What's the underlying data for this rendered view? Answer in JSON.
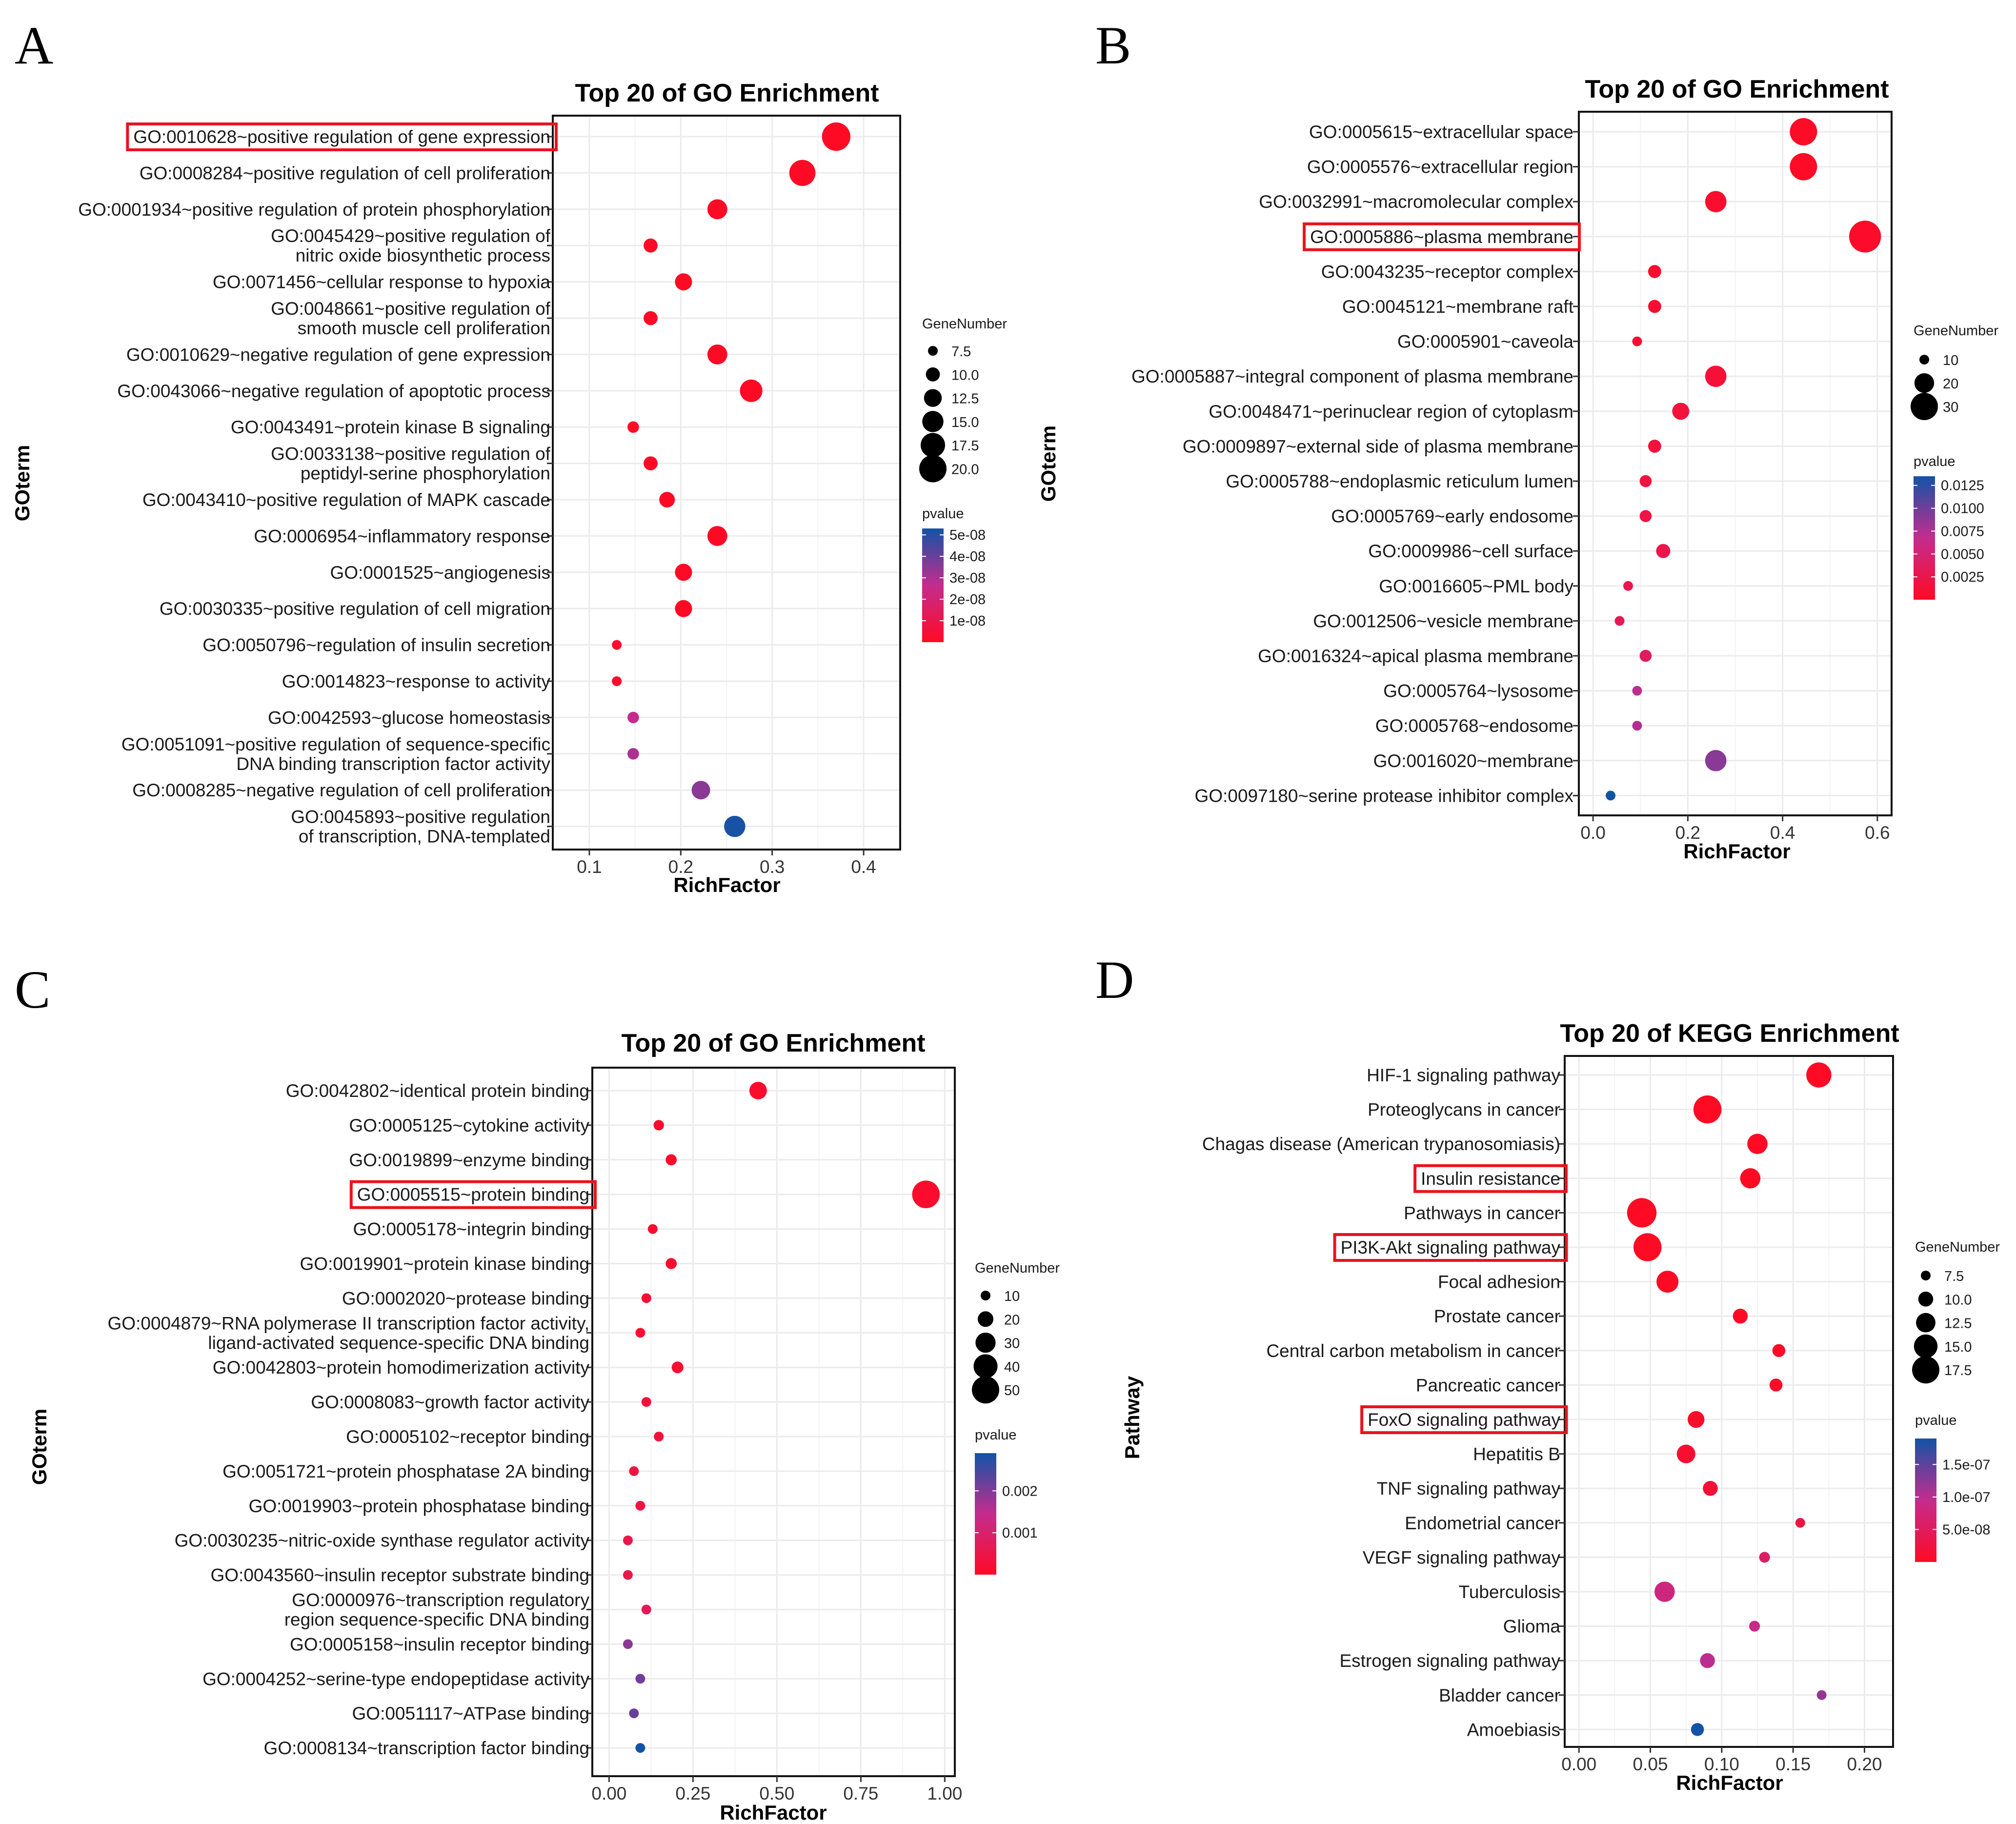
{
  "colors": {
    "low_p": "#ff0a25",
    "mid_p": "#c42c8e",
    "high_p": "#1253a6",
    "grid": "#ebebeb",
    "highlight_box": "#e8141d"
  },
  "chart_data": [
    {
      "panel": "A",
      "type": "scatter",
      "title": "Top 20 of GO Enrichment",
      "xlabel": "RichFactor",
      "ylabel": "GOterm",
      "xlim": [
        0.06,
        0.44
      ],
      "xticks": [
        0.1,
        0.2,
        0.3,
        0.4
      ],
      "xtick_labels": [
        "0.1",
        "0.2",
        "0.3",
        "0.4"
      ],
      "size_legend": {
        "title": "GeneNumber",
        "values": [
          7.5,
          10.0,
          12.5,
          15.0,
          17.5,
          20.0
        ],
        "labels": [
          "7.5",
          "10.0",
          "12.5",
          "15.0",
          "17.5",
          "20.0"
        ]
      },
      "color_legend": {
        "title": "pvalue",
        "min": 0,
        "max": 5.3e-08,
        "ticks": [
          5e-08,
          4e-08,
          3e-08,
          2e-08,
          1e-08
        ],
        "labels": [
          "5e-08",
          "4e-08",
          "3e-08",
          "2e-08",
          "1e-08"
        ]
      },
      "terms": [
        {
          "label": [
            "GO:0010628~positive regulation of gene expression"
          ],
          "x": 0.37,
          "count": 21,
          "p": 1e-10,
          "highlight": true
        },
        {
          "label": [
            "GO:0008284~positive regulation of cell proliferation"
          ],
          "x": 0.333,
          "count": 19,
          "p": 1e-10
        },
        {
          "label": [
            "GO:0001934~positive regulation of protein phosphorylation"
          ],
          "x": 0.24,
          "count": 14,
          "p": 1e-10
        },
        {
          "label": [
            "GO:0045429~positive regulation of",
            "nitric oxide biosynthetic process"
          ],
          "x": 0.167,
          "count": 10,
          "p": 1e-10
        },
        {
          "label": [
            "GO:0071456~cellular response to hypoxia"
          ],
          "x": 0.203,
          "count": 12,
          "p": 1e-10
        },
        {
          "label": [
            "GO:0048661~positive regulation of",
            "smooth muscle cell proliferation"
          ],
          "x": 0.167,
          "count": 10,
          "p": 1e-10
        },
        {
          "label": [
            "GO:0010629~negative regulation of gene expression"
          ],
          "x": 0.24,
          "count": 14,
          "p": 1e-10
        },
        {
          "label": [
            "GO:0043066~negative regulation of apoptotic process"
          ],
          "x": 0.277,
          "count": 16,
          "p": 1e-10
        },
        {
          "label": [
            "GO:0043491~protein kinase B signaling"
          ],
          "x": 0.148,
          "count": 8.5,
          "p": 1e-10
        },
        {
          "label": [
            "GO:0033138~positive regulation of",
            "peptidyl-serine phosphorylation"
          ],
          "x": 0.167,
          "count": 10,
          "p": 1e-10
        },
        {
          "label": [
            "GO:0043410~positive regulation of MAPK cascade"
          ],
          "x": 0.185,
          "count": 11,
          "p": 1e-10
        },
        {
          "label": [
            "GO:0006954~inflammatory response"
          ],
          "x": 0.24,
          "count": 14,
          "p": 1e-10
        },
        {
          "label": [
            "GO:0001525~angiogenesis"
          ],
          "x": 0.203,
          "count": 12,
          "p": 1e-10
        },
        {
          "label": [
            "GO:0030335~positive regulation of cell migration"
          ],
          "x": 0.203,
          "count": 12,
          "p": 1e-10
        },
        {
          "label": [
            "GO:0050796~regulation of insulin secretion"
          ],
          "x": 0.13,
          "count": 6,
          "p": 2e-09
        },
        {
          "label": [
            "GO:0014823~response to activity"
          ],
          "x": 0.13,
          "count": 6,
          "p": 2e-09
        },
        {
          "label": [
            "GO:0042593~glucose homeostasis"
          ],
          "x": 0.148,
          "count": 8.5,
          "p": 2.6e-08
        },
        {
          "label": [
            "GO:0051091~positive regulation of sequence-specific",
            "DNA binding transcription factor activity"
          ],
          "x": 0.148,
          "count": 8.5,
          "p": 3e-08
        },
        {
          "label": [
            "GO:0008285~negative regulation of cell proliferation"
          ],
          "x": 0.222,
          "count": 13,
          "p": 3.5e-08
        },
        {
          "label": [
            "GO:0045893~positive regulation",
            "of transcription, DNA-templated"
          ],
          "x": 0.259,
          "count": 15,
          "p": 5.2e-08
        }
      ]
    },
    {
      "panel": "B",
      "type": "scatter",
      "title": "Top 20 of GO Enrichment",
      "xlabel": "RichFactor",
      "ylabel": "GOterm",
      "xlim": [
        -0.03,
        0.63
      ],
      "xticks": [
        0.0,
        0.2,
        0.4,
        0.6
      ],
      "xtick_labels": [
        "0.0",
        "0.2",
        "0.4",
        "0.6"
      ],
      "size_legend": {
        "title": "GeneNumber",
        "values": [
          10,
          20,
          30
        ],
        "labels": [
          "10",
          "20",
          "30"
        ]
      },
      "color_legend": {
        "title": "pvalue",
        "min": 0,
        "max": 0.0135,
        "ticks": [
          0.0125,
          0.01,
          0.0075,
          0.005,
          0.0025
        ],
        "labels": [
          "0.0125",
          "0.0100",
          "0.0075",
          "0.0050",
          "0.0025"
        ]
      },
      "terms": [
        {
          "label": [
            "GO:0005615~extracellular space"
          ],
          "x": 0.444,
          "count": 30,
          "p": 0.0001
        },
        {
          "label": [
            "GO:0005576~extracellular region"
          ],
          "x": 0.444,
          "count": 30,
          "p": 0.0001
        },
        {
          "label": [
            "GO:0032991~macromolecular complex"
          ],
          "x": 0.259,
          "count": 22,
          "p": 0.0005
        },
        {
          "label": [
            "GO:0005886~plasma membrane"
          ],
          "x": 0.574,
          "count": 37,
          "p": 0.0003,
          "highlight": true
        },
        {
          "label": [
            "GO:0043235~receptor complex"
          ],
          "x": 0.13,
          "count": 13,
          "p": 0.0008
        },
        {
          "label": [
            "GO:0045121~membrane raft"
          ],
          "x": 0.13,
          "count": 13,
          "p": 0.0008
        },
        {
          "label": [
            "GO:0005901~caveola"
          ],
          "x": 0.093,
          "count": 10,
          "p": 0.0008
        },
        {
          "label": [
            "GO:0005887~integral component of plasma membrane"
          ],
          "x": 0.259,
          "count": 22,
          "p": 0.0012
        },
        {
          "label": [
            "GO:0048471~perinuclear region of cytoplasm"
          ],
          "x": 0.185,
          "count": 17,
          "p": 0.0015
        },
        {
          "label": [
            "GO:0009897~external side of plasma membrane"
          ],
          "x": 0.13,
          "count": 13,
          "p": 0.0015
        },
        {
          "label": [
            "GO:0005788~endoplasmic reticulum lumen"
          ],
          "x": 0.111,
          "count": 12,
          "p": 0.0018
        },
        {
          "label": [
            "GO:0005769~early endosome"
          ],
          "x": 0.111,
          "count": 12,
          "p": 0.002
        },
        {
          "label": [
            "GO:0009986~cell surface"
          ],
          "x": 0.148,
          "count": 14,
          "p": 0.0025
        },
        {
          "label": [
            "GO:0016605~PML body"
          ],
          "x": 0.074,
          "count": 9,
          "p": 0.0025
        },
        {
          "label": [
            "GO:0012506~vesicle membrane"
          ],
          "x": 0.056,
          "count": 7,
          "p": 0.003
        },
        {
          "label": [
            "GO:0016324~apical plasma membrane"
          ],
          "x": 0.111,
          "count": 12,
          "p": 0.0035
        },
        {
          "label": [
            "GO:0005764~lysosome"
          ],
          "x": 0.093,
          "count": 10,
          "p": 0.007
        },
        {
          "label": [
            "GO:0005768~endosome"
          ],
          "x": 0.093,
          "count": 10,
          "p": 0.0075
        },
        {
          "label": [
            "GO:0016020~membrane"
          ],
          "x": 0.259,
          "count": 22,
          "p": 0.009
        },
        {
          "label": [
            "GO:0097180~serine protease inhibitor complex"
          ],
          "x": 0.037,
          "count": 4,
          "p": 0.0135
        }
      ]
    },
    {
      "panel": "C",
      "type": "scatter",
      "title": "Top 20 of GO Enrichment",
      "xlabel": "RichFactor",
      "ylabel": "GOterm",
      "xlim": [
        -0.05,
        1.03
      ],
      "xticks": [
        0.0,
        0.25,
        0.5,
        0.75,
        1.0
      ],
      "xtick_labels": [
        "0.00",
        "0.25",
        "0.50",
        "0.75",
        "1.00"
      ],
      "size_legend": {
        "title": "GeneNumber",
        "values": [
          10,
          20,
          30,
          40,
          50
        ],
        "labels": [
          "10",
          "20",
          "30",
          "40",
          "50"
        ]
      },
      "color_legend": {
        "title": "pvalue",
        "min": 0,
        "max": 0.0029,
        "ticks": [
          0.002,
          0.001
        ],
        "labels": [
          "0.002",
          "0.001"
        ]
      },
      "terms": [
        {
          "label": [
            "GO:0042802~identical protein binding"
          ],
          "x": 0.444,
          "count": 24,
          "p": 0.0001
        },
        {
          "label": [
            "GO:0005125~cytokine activity"
          ],
          "x": 0.148,
          "count": 11,
          "p": 0.0001
        },
        {
          "label": [
            "GO:0019899~enzyme binding"
          ],
          "x": 0.185,
          "count": 12,
          "p": 0.0001
        },
        {
          "label": [
            "GO:0005515~protein binding"
          ],
          "x": 0.944,
          "count": 51,
          "p": 0.0001,
          "highlight": true
        },
        {
          "label": [
            "GO:0005178~integrin binding"
          ],
          "x": 0.13,
          "count": 9,
          "p": 0.0001
        },
        {
          "label": [
            "GO:0019901~protein kinase binding"
          ],
          "x": 0.185,
          "count": 12,
          "p": 0.0001
        },
        {
          "label": [
            "GO:0002020~protease binding"
          ],
          "x": 0.111,
          "count": 8,
          "p": 0.0002
        },
        {
          "label": [
            "GO:0004879~RNA polymerase II transcription factor activity,",
            "ligand-activated sequence-specific DNA binding"
          ],
          "x": 0.093,
          "count": 7,
          "p": 0.0002
        },
        {
          "label": [
            "GO:0042803~protein homodimerization activity"
          ],
          "x": 0.204,
          "count": 13,
          "p": 0.0002
        },
        {
          "label": [
            "GO:0008083~growth factor activity"
          ],
          "x": 0.111,
          "count": 8,
          "p": 0.0003
        },
        {
          "label": [
            "GO:0005102~receptor binding"
          ],
          "x": 0.148,
          "count": 10,
          "p": 0.0003
        },
        {
          "label": [
            "GO:0051721~protein phosphatase 2A binding"
          ],
          "x": 0.074,
          "count": 6,
          "p": 0.0004
        },
        {
          "label": [
            "GO:0019903~protein phosphatase binding"
          ],
          "x": 0.093,
          "count": 7,
          "p": 0.0004
        },
        {
          "label": [
            "GO:0030235~nitric-oxide synthase regulator activity"
          ],
          "x": 0.056,
          "count": 4,
          "p": 0.0005
        },
        {
          "label": [
            "GO:0043560~insulin receptor substrate binding"
          ],
          "x": 0.056,
          "count": 4,
          "p": 0.0005
        },
        {
          "label": [
            "GO:0000976~transcription regulatory",
            "region sequence-specific DNA binding"
          ],
          "x": 0.111,
          "count": 7,
          "p": 0.0007
        },
        {
          "label": [
            "GO:0005158~insulin receptor binding"
          ],
          "x": 0.056,
          "count": 4,
          "p": 0.0019
        },
        {
          "label": [
            "GO:0004252~serine-type endopeptidase activity"
          ],
          "x": 0.093,
          "count": 7,
          "p": 0.0021
        },
        {
          "label": [
            "GO:0051117~ATPase binding"
          ],
          "x": 0.074,
          "count": 6,
          "p": 0.0022
        },
        {
          "label": [
            "GO:0008134~transcription factor binding"
          ],
          "x": 0.093,
          "count": 7,
          "p": 0.0029
        }
      ]
    },
    {
      "panel": "D",
      "type": "scatter",
      "title": "Top 20 of KEGG Enrichment",
      "xlabel": "RichFactor",
      "ylabel": "Pathway",
      "xlim": [
        -0.01,
        0.22
      ],
      "xticks": [
        0.0,
        0.05,
        0.1,
        0.15,
        0.2
      ],
      "xtick_labels": [
        "0.00",
        "0.05",
        "0.10",
        "0.15",
        "0.20"
      ],
      "size_legend": {
        "title": "GeneNumber",
        "values": [
          7.5,
          10.0,
          12.5,
          15.0,
          17.5
        ],
        "labels": [
          "7.5",
          "10.0",
          "12.5",
          "15.0",
          "17.5"
        ]
      },
      "color_legend": {
        "title": "pvalue",
        "min": 0,
        "max": 1.9e-07,
        "ticks": [
          1.5e-07,
          1e-07,
          5e-08
        ],
        "labels": [
          "1.5e-07",
          "1.0e-07",
          "5.0e-08"
        ]
      },
      "terms": [
        {
          "label": [
            "HIF-1 signaling pathway"
          ],
          "x": 0.168,
          "count": 16,
          "p": 1e-10
        },
        {
          "label": [
            "Proteoglycans in cancer"
          ],
          "x": 0.09,
          "count": 18,
          "p": 1e-10
        },
        {
          "label": [
            "Chagas disease (American trypanosomiasis)"
          ],
          "x": 0.125,
          "count": 13,
          "p": 1e-10
        },
        {
          "label": [
            "Insulin resistance"
          ],
          "x": 0.12,
          "count": 13,
          "p": 1e-10,
          "highlight": true
        },
        {
          "label": [
            "Pathways in cancer"
          ],
          "x": 0.044,
          "count": 19,
          "p": 1e-10
        },
        {
          "label": [
            "PI3K-Akt signaling pathway"
          ],
          "x": 0.048,
          "count": 18,
          "p": 1e-10,
          "highlight": true
        },
        {
          "label": [
            "Focal adhesion"
          ],
          "x": 0.062,
          "count": 14,
          "p": 1e-10
        },
        {
          "label": [
            "Prostate cancer"
          ],
          "x": 0.113,
          "count": 10,
          "p": 1e-10
        },
        {
          "label": [
            "Central carbon metabolism in cancer"
          ],
          "x": 0.14,
          "count": 9,
          "p": 2e-09
        },
        {
          "label": [
            "Pancreatic cancer"
          ],
          "x": 0.138,
          "count": 9,
          "p": 2e-09
        },
        {
          "label": [
            "FoxO signaling pathway"
          ],
          "x": 0.082,
          "count": 11,
          "p": 5e-09,
          "highlight": true
        },
        {
          "label": [
            "Hepatitis B"
          ],
          "x": 0.075,
          "count": 12,
          "p": 1e-08
        },
        {
          "label": [
            "TNF signaling pathway"
          ],
          "x": 0.092,
          "count": 10,
          "p": 1.5e-08
        },
        {
          "label": [
            "Endometrial cancer"
          ],
          "x": 0.155,
          "count": 7,
          "p": 2.5e-08
        },
        {
          "label": [
            "VEGF signaling pathway"
          ],
          "x": 0.13,
          "count": 8,
          "p": 6e-08
        },
        {
          "label": [
            "Tuberculosis"
          ],
          "x": 0.06,
          "count": 13,
          "p": 8e-08
        },
        {
          "label": [
            "Glioma"
          ],
          "x": 0.123,
          "count": 8,
          "p": 9e-08
        },
        {
          "label": [
            "Estrogen signaling pathway"
          ],
          "x": 0.09,
          "count": 10,
          "p": 1e-07
        },
        {
          "label": [
            "Bladder cancer"
          ],
          "x": 0.17,
          "count": 5,
          "p": 1.2e-07
        },
        {
          "label": [
            "Amoebiasis"
          ],
          "x": 0.083,
          "count": 9,
          "p": 1.9e-07
        }
      ]
    }
  ]
}
